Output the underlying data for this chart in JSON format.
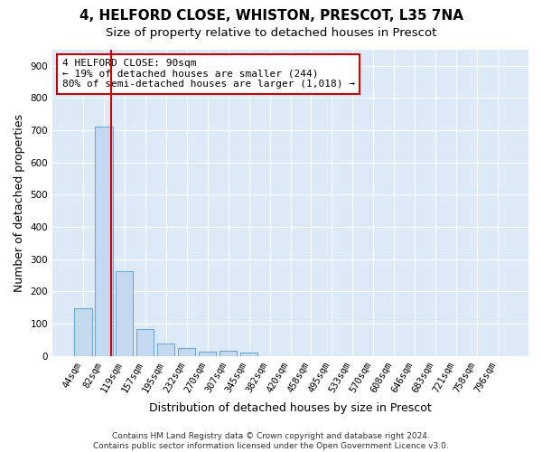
{
  "title1": "4, HELFORD CLOSE, WHISTON, PRESCOT, L35 7NA",
  "title2": "Size of property relative to detached houses in Prescot",
  "xlabel": "Distribution of detached houses by size in Prescot",
  "ylabel": "Number of detached properties",
  "categories": [
    "44sqm",
    "82sqm",
    "119sqm",
    "157sqm",
    "195sqm",
    "232sqm",
    "270sqm",
    "307sqm",
    "345sqm",
    "382sqm",
    "420sqm",
    "458sqm",
    "495sqm",
    "533sqm",
    "570sqm",
    "608sqm",
    "646sqm",
    "683sqm",
    "721sqm",
    "758sqm",
    "796sqm"
  ],
  "values": [
    147,
    712,
    262,
    85,
    40,
    25,
    14,
    15,
    12,
    0,
    0,
    0,
    0,
    0,
    0,
    0,
    0,
    0,
    0,
    0,
    0
  ],
  "bar_color": "#c5d9f0",
  "bar_edge_color": "#6aaad4",
  "vline_x_index": 1.35,
  "vline_color": "#cc0000",
  "annotation_text": "4 HELFORD CLOSE: 90sqm\n← 19% of detached houses are smaller (244)\n80% of semi-detached houses are larger (1,018) →",
  "annotation_box_color": "#ffffff",
  "annotation_box_edge": "#cc0000",
  "ylim": [
    0,
    950
  ],
  "yticks": [
    0,
    100,
    200,
    300,
    400,
    500,
    600,
    700,
    800,
    900
  ],
  "bg_color": "#ffffff",
  "plot_bg_color": "#dce9f7",
  "grid_color": "#ffffff",
  "footer": "Contains HM Land Registry data © Crown copyright and database right 2024.\nContains public sector information licensed under the Open Government Licence v3.0.",
  "title_fontsize": 11,
  "subtitle_fontsize": 9.5,
  "tick_fontsize": 7.5,
  "ylabel_fontsize": 9,
  "xlabel_fontsize": 9,
  "annotation_fontsize": 8
}
